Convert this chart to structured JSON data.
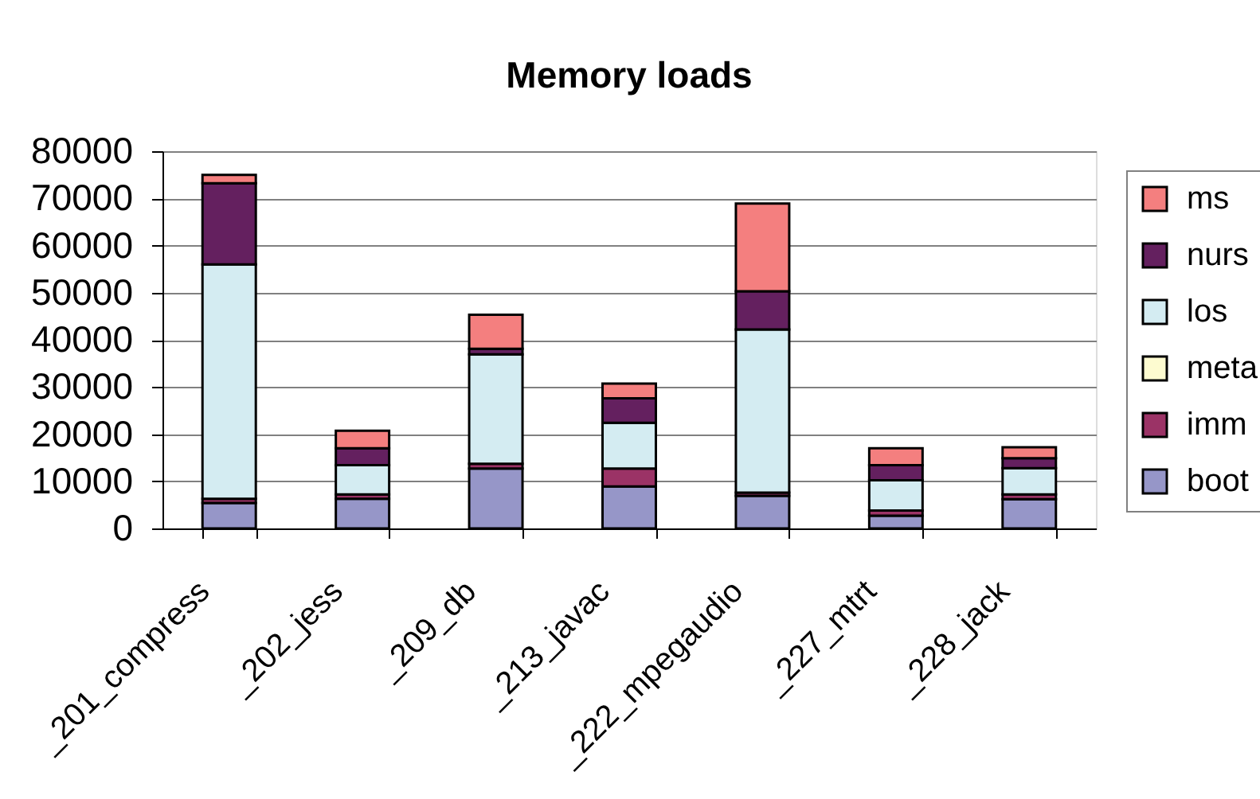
{
  "chart_data": {
    "type": "bar",
    "title": "Memory loads",
    "categories": [
      "_201_compress",
      "_202_jess",
      "_209_db",
      "_213_javac",
      "_222_mpegaudio",
      "_227_mtrt",
      "_228_jack"
    ],
    "stacked": true,
    "ylim": [
      0,
      80000
    ],
    "yticks": [
      0,
      10000,
      20000,
      30000,
      40000,
      50000,
      60000,
      70000,
      80000
    ],
    "grid": "y",
    "legend": "right",
    "series": [
      {
        "name": "boot",
        "color": "#9696c8",
        "values": [
          5400,
          6300,
          12700,
          8900,
          6900,
          2700,
          6200
        ]
      },
      {
        "name": "imm",
        "color": "#9b3366",
        "values": [
          900,
          900,
          1000,
          3800,
          700,
          1100,
          1000
        ]
      },
      {
        "name": "meta",
        "color": "#fdfbd0",
        "values": [
          null,
          null,
          null,
          null,
          null,
          null,
          null
        ]
      },
      {
        "name": "los",
        "color": "#d4ecf2",
        "values": [
          49700,
          6200,
          23200,
          9700,
          34600,
          6400,
          5600
        ]
      },
      {
        "name": "nurs",
        "color": "#64205f",
        "values": [
          17200,
          3600,
          1200,
          5200,
          8100,
          3200,
          2100
        ]
      },
      {
        "name": "ms",
        "color": "#f47f7f",
        "values": [
          1800,
          3700,
          7200,
          3100,
          18600,
          3600,
          2300
        ]
      }
    ]
  }
}
